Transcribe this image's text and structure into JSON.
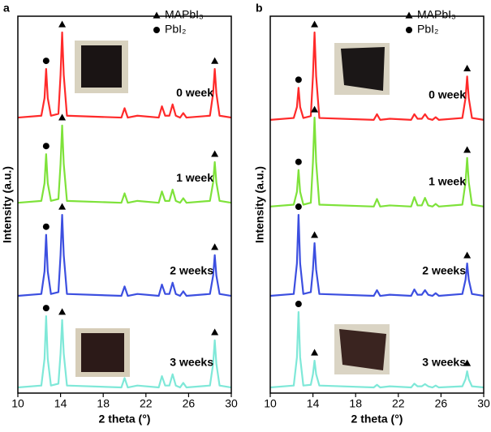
{
  "chart_data": [
    {
      "type": "line",
      "panel": "a",
      "x_label": "2 theta (°)",
      "y_label": "Intensity (a.u.)",
      "legend": [
        "MAPbI₃",
        "PbI₂"
      ],
      "x": [
        10,
        12.2,
        12.5,
        12.65,
        12.8,
        13.1,
        13.8,
        14.0,
        14.15,
        14.3,
        14.6,
        19.7,
        20.0,
        20.3,
        21.2,
        23.2,
        23.5,
        23.8,
        24.2,
        24.5,
        24.8,
        25.2,
        25.5,
        25.8,
        28.0,
        28.3,
        28.45,
        28.6,
        28.9,
        30
      ],
      "xlim": [
        10,
        30
      ],
      "xticks": [
        10,
        14,
        18,
        22,
        26,
        30
      ],
      "ylim": [
        0,
        10
      ],
      "series": [
        {
          "name": "0 week",
          "color": "#ff2a2a",
          "values": [
            7.31,
            7.36,
            7.83,
            8.6,
            7.83,
            7.36,
            7.41,
            8.44,
            9.57,
            8.44,
            7.36,
            7.31,
            7.56,
            7.31,
            7.36,
            7.31,
            7.61,
            7.36,
            7.36,
            7.66,
            7.36,
            7.31,
            7.43,
            7.31,
            7.36,
            7.96,
            8.6,
            7.96,
            7.36,
            7.31
          ]
        },
        {
          "name": "1 week",
          "color": "#7ee23a",
          "values": [
            5.05,
            5.1,
            5.57,
            6.34,
            5.57,
            5.1,
            5.15,
            6.08,
            7.1,
            6.08,
            5.1,
            5.05,
            5.3,
            5.05,
            5.1,
            5.05,
            5.35,
            5.1,
            5.1,
            5.4,
            5.1,
            5.05,
            5.17,
            5.05,
            5.1,
            5.59,
            6.13,
            5.59,
            5.1,
            5.05
          ]
        },
        {
          "name": "2 weeks",
          "color": "#3c4fe0",
          "values": [
            2.58,
            2.63,
            3.23,
            4.2,
            3.23,
            2.63,
            2.68,
            3.66,
            4.73,
            3.66,
            2.63,
            2.58,
            2.83,
            2.58,
            2.63,
            2.58,
            2.88,
            2.63,
            2.63,
            2.93,
            2.63,
            2.58,
            2.7,
            2.58,
            2.63,
            3.12,
            3.66,
            3.12,
            2.63,
            2.58
          ]
        },
        {
          "name": "3 weeks",
          "color": "#7fe8d8",
          "values": [
            0.15,
            0.2,
            0.91,
            2.04,
            0.91,
            0.2,
            0.25,
            1.05,
            1.94,
            1.05,
            0.2,
            0.15,
            0.4,
            0.15,
            0.2,
            0.15,
            0.45,
            0.2,
            0.2,
            0.5,
            0.2,
            0.15,
            0.27,
            0.15,
            0.2,
            0.78,
            1.4,
            0.78,
            0.2,
            0.15
          ]
        }
      ]
    },
    {
      "type": "line",
      "panel": "b",
      "x_label": "2 theta (°)",
      "y_label": "Intensity (a.u.)",
      "legend": [
        "MAPbI₃",
        "PbI₂"
      ],
      "x": [
        10,
        12.2,
        12.5,
        12.65,
        12.8,
        13.1,
        13.8,
        14.0,
        14.15,
        14.3,
        14.6,
        19.7,
        20.0,
        20.3,
        21.2,
        23.2,
        23.5,
        23.8,
        24.2,
        24.5,
        24.8,
        25.2,
        25.5,
        25.8,
        28.0,
        28.3,
        28.45,
        28.6,
        28.9,
        30
      ],
      "xlim": [
        10,
        30
      ],
      "xticks": [
        10,
        14,
        18,
        22,
        26,
        30
      ],
      "ylim": [
        0,
        10
      ],
      "series": [
        {
          "name": "0 week",
          "color": "#ff2a2a",
          "values": [
            7.25,
            7.3,
            7.59,
            8.1,
            7.59,
            7.3,
            7.35,
            8.41,
            9.57,
            8.41,
            7.3,
            7.25,
            7.4,
            7.25,
            7.28,
            7.25,
            7.4,
            7.28,
            7.28,
            7.4,
            7.28,
            7.25,
            7.32,
            7.25,
            7.3,
            7.83,
            8.4,
            7.83,
            7.3,
            7.25
          ]
        },
        {
          "name": "1 week",
          "color": "#7ee23a",
          "values": [
            4.95,
            5.0,
            5.34,
            5.92,
            5.34,
            5.0,
            5.05,
            6.13,
            7.31,
            6.13,
            5.0,
            4.95,
            5.15,
            4.95,
            4.98,
            4.95,
            5.2,
            4.98,
            4.98,
            5.18,
            4.98,
            4.95,
            5.02,
            4.95,
            5.0,
            5.6,
            6.24,
            5.6,
            5.0,
            4.95
          ]
        },
        {
          "name": "2 weeks",
          "color": "#3c4fe0",
          "values": [
            2.58,
            2.63,
            3.44,
            4.73,
            3.44,
            2.63,
            2.68,
            3.28,
            3.98,
            3.28,
            2.63,
            2.58,
            2.73,
            2.58,
            2.61,
            2.58,
            2.75,
            2.61,
            2.61,
            2.73,
            2.61,
            2.58,
            2.65,
            2.58,
            2.63,
            3.01,
            3.44,
            3.01,
            2.63,
            2.58
          ]
        },
        {
          "name": "3 weeks",
          "color": "#7fe8d8",
          "values": [
            0.15,
            0.2,
            0.95,
            2.15,
            0.95,
            0.2,
            0.22,
            0.5,
            0.86,
            0.5,
            0.2,
            0.15,
            0.22,
            0.15,
            0.18,
            0.15,
            0.25,
            0.18,
            0.18,
            0.24,
            0.18,
            0.15,
            0.2,
            0.15,
            0.18,
            0.37,
            0.58,
            0.37,
            0.18,
            0.15
          ]
        }
      ]
    }
  ]
}
